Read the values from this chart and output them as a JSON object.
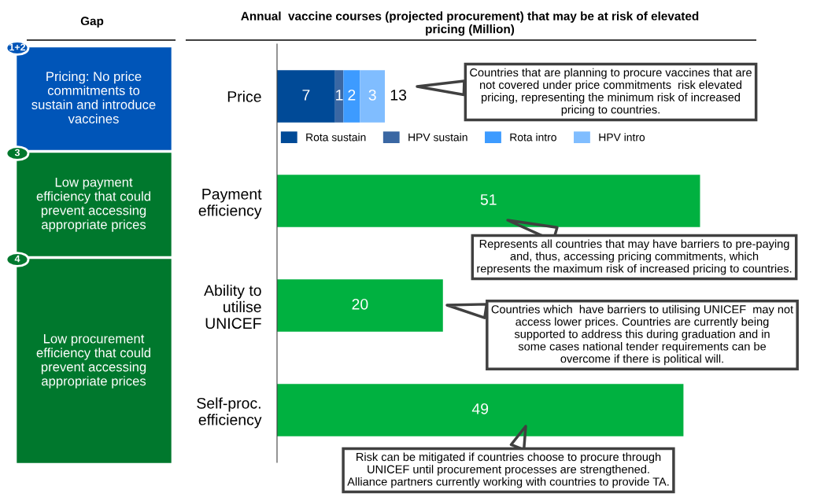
{
  "chart_data": {
    "type": "bar",
    "orientation": "horizontal",
    "stacked": true,
    "title": "Annual  vaccine courses (projected procurement) that may be at risk of elevated\npricing (Million)",
    "categories": [
      "Price",
      "Payment\nefficiency",
      "Ability to\nutilise\nUNICEF",
      "Self-proc.\nefficiency"
    ],
    "series": [
      {
        "name": "Rota sustain",
        "color": "#004a97",
        "values": [
          7,
          null,
          null,
          null
        ]
      },
      {
        "name": "HPV sustain",
        "color": "#3a67a3",
        "values": [
          1,
          null,
          null,
          null
        ]
      },
      {
        "name": "Rota intro",
        "color": "#3d9bff",
        "values": [
          2,
          null,
          null,
          null
        ]
      },
      {
        "name": "HPV intro",
        "color": "#80bdff",
        "values": [
          3,
          null,
          null,
          null
        ]
      },
      {
        "color": "#00b140",
        "values": [
          null,
          51,
          20,
          49
        ]
      }
    ],
    "data_labels": true,
    "totals": [
      "13",
      null,
      null,
      null
    ],
    "legend": "top left",
    "grid": false,
    "annotations": [
      "Gap",
      "Pricing: No price\ncommitments to\nsustain and introduce\nvaccines",
      "Low payment\nefficiency that could\nprevent accessing\nappropriate prices",
      "Low procurement\nefficiency that could\nprevent accessing\nappropriate prices",
      "1+2",
      "3",
      "4",
      "Countries that are planning to procure vaccines that are\nnot covered under price commitments  risk elevated\npricing, representing the minimum risk of increased\npricing to countries.",
      "Represents all countries that may have barriers to pre-paying\nand, thus, accessing pricing commitments, which\nrepresents the maximum risk of increased pricing to countries.",
      "Countries which  have barriers to utilising UNICEF  may not\naccess lower prices. Countries are currently being\nsupported to address this during graduation and in\nsome cases national tender requirements can be\novercome if there is political will.",
      "Risk can be mitigated if countries choose to procure through\nUNICEF until procurement processes are strengthened.\nAlliance partners currently working with countries to provide TA."
    ]
  }
}
